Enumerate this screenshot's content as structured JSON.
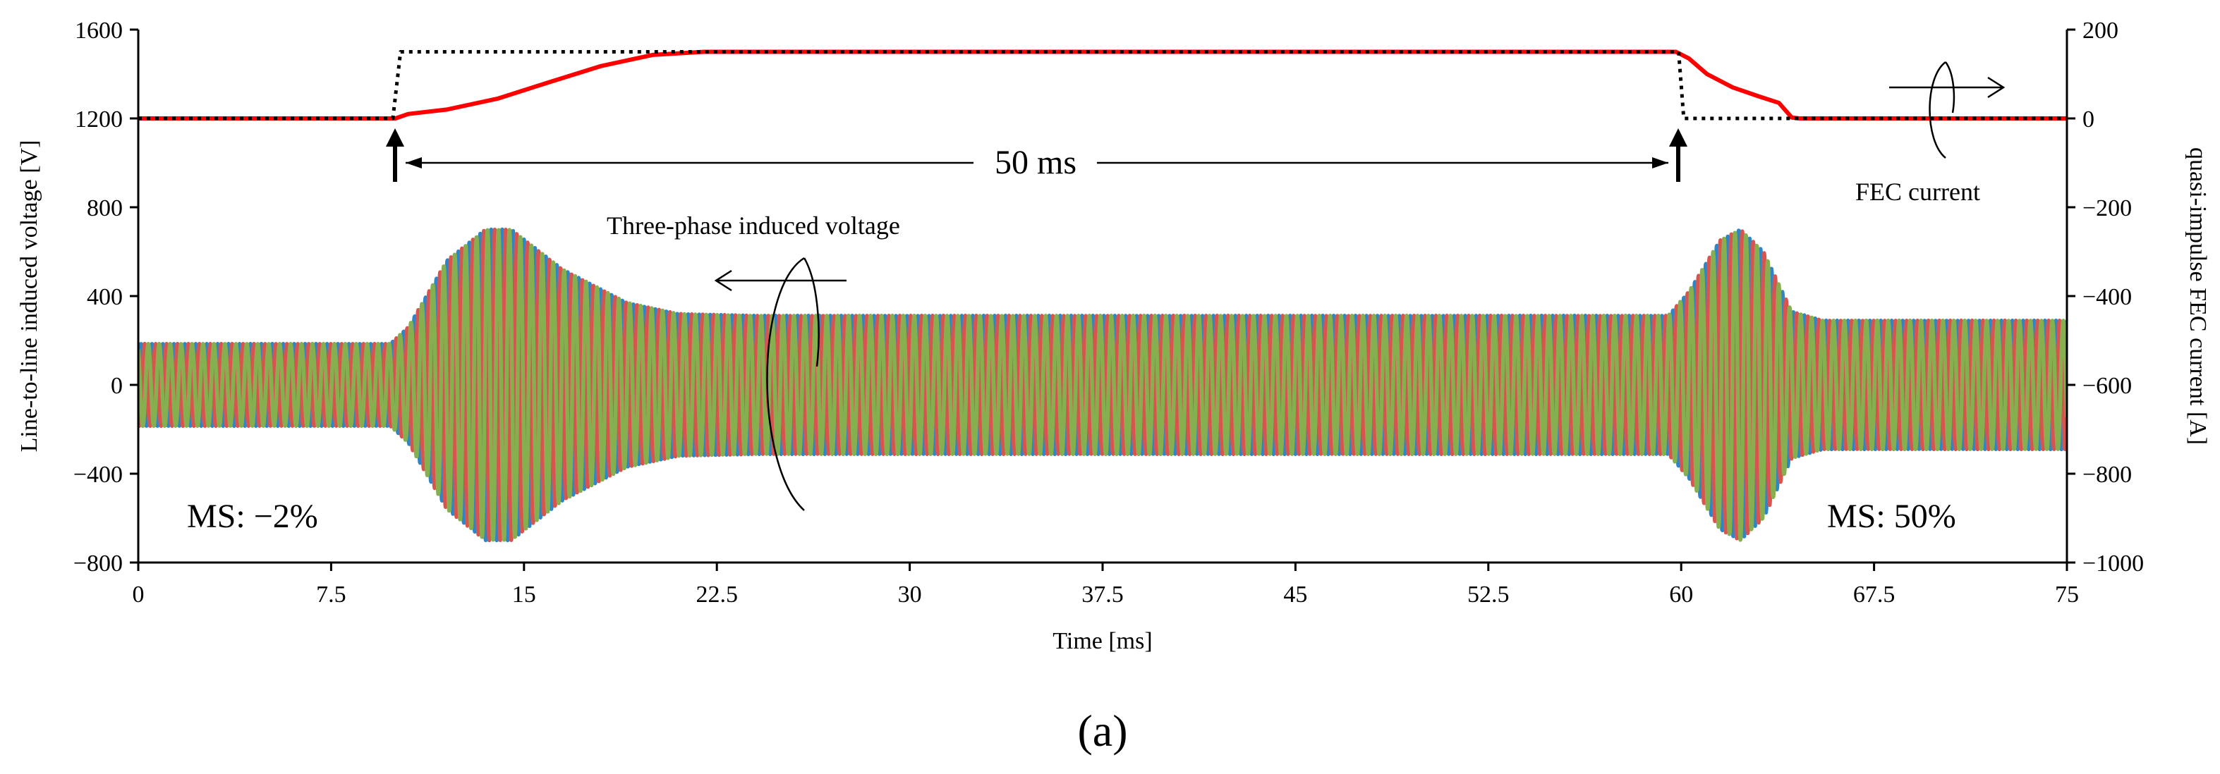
{
  "chart_data": {
    "type": "line",
    "panel_label": "(a)",
    "x_axis": {
      "title": "Time [ms]",
      "range": [
        0,
        75
      ],
      "ticks": [
        0,
        7.5,
        15,
        22.5,
        30,
        37.5,
        45,
        52.5,
        60,
        67.5,
        75
      ],
      "tick_labels": [
        "0",
        "7.5",
        "15",
        "22.5",
        "30",
        "37.5",
        "45",
        "52.5",
        "60",
        "67.5",
        "75"
      ]
    },
    "y_left": {
      "title": "Line-to-line induced voltage [V]",
      "range": [
        -800,
        1600
      ],
      "ticks": [
        -800,
        -400,
        0,
        400,
        800,
        1200,
        1600
      ],
      "tick_labels": [
        "−800",
        "−400",
        "0",
        "400",
        "800",
        "1200",
        "1600"
      ]
    },
    "y_right": {
      "title": "quasi-impulse FEC current [A]",
      "range": [
        -1000,
        200
      ],
      "ticks": [
        -1000,
        -800,
        -600,
        -400,
        -200,
        0,
        200
      ],
      "tick_labels": [
        "−1000",
        "−800",
        "−600",
        "−400",
        "−200",
        "0",
        "200"
      ]
    },
    "voltage_model": {
      "frequency_khz": 2.35,
      "phase_shifts_deg": [
        0,
        -120,
        120
      ],
      "envelope_points": [
        [
          0,
          185
        ],
        [
          9.8,
          185
        ],
        [
          10.5,
          260
        ],
        [
          12,
          560
        ],
        [
          13.5,
          700
        ],
        [
          14.5,
          700
        ],
        [
          16.5,
          520
        ],
        [
          19,
          370
        ],
        [
          21,
          320
        ],
        [
          24,
          312
        ],
        [
          59.5,
          312
        ],
        [
          60.3,
          420
        ],
        [
          61.5,
          650
        ],
        [
          62.3,
          700
        ],
        [
          63.2,
          600
        ],
        [
          64.3,
          330
        ],
        [
          65.5,
          290
        ],
        [
          75,
          290
        ]
      ]
    },
    "series": [
      {
        "name": "Phase voltage (blue)",
        "axis": "left",
        "color": "#2E86C8",
        "phase_deg": 0
      },
      {
        "name": "Phase voltage (red)",
        "axis": "left",
        "color": "#D8544E",
        "phase_deg": -120
      },
      {
        "name": "Phase voltage (green)",
        "axis": "left",
        "color": "#86B04F",
        "phase_deg": 120
      },
      {
        "name": "FEC current (measured)",
        "axis": "right",
        "color": "#FF0000",
        "points": [
          [
            0,
            0
          ],
          [
            10,
            0
          ],
          [
            10.5,
            10
          ],
          [
            12,
            20
          ],
          [
            14,
            45
          ],
          [
            16,
            82
          ],
          [
            18,
            118
          ],
          [
            20,
            143
          ],
          [
            22,
            150
          ],
          [
            59.8,
            150
          ],
          [
            60.3,
            135
          ],
          [
            61,
            100
          ],
          [
            62,
            70
          ],
          [
            63,
            50
          ],
          [
            63.8,
            35
          ],
          [
            64.3,
            2
          ],
          [
            64.6,
            0
          ],
          [
            75,
            0
          ]
        ]
      },
      {
        "name": "FEC current (reference)",
        "axis": "right",
        "color": "#000000",
        "dash": "dotted",
        "points": [
          [
            0,
            0
          ],
          [
            9.9,
            0
          ],
          [
            10.2,
            150
          ],
          [
            59.9,
            150
          ],
          [
            60.1,
            0
          ],
          [
            75,
            0
          ]
        ]
      }
    ],
    "annotations": {
      "three_phase": "Three-phase induced voltage",
      "fec_current": "FEC current",
      "duration": "50 ms",
      "ms_left": "MS: −2%",
      "ms_right": "MS: 50%"
    }
  }
}
